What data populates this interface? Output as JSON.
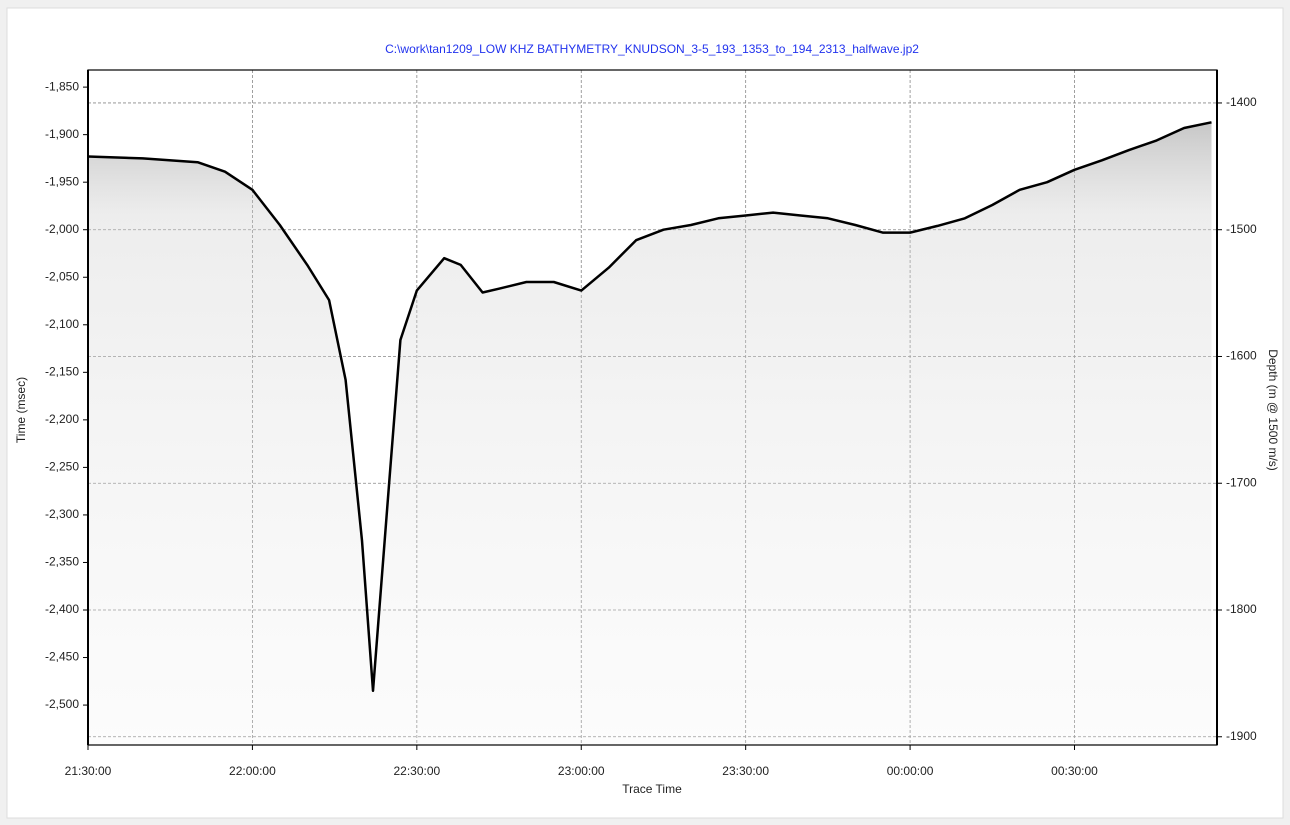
{
  "chart_data": {
    "type": "line",
    "title": "C:\\work\\tan1209_LOW KHZ BATHYMETRY_KNUDSON_3-5_193_1353_to_194_2313_halfwave.jp2",
    "xlabel": "Trace Time",
    "ylabel": "Time (msec)",
    "y2label": "Depth (m @ 1500 m/s)",
    "x": [
      "21:30",
      "21:40",
      "21:50",
      "21:55",
      "22:00",
      "22:05",
      "22:10",
      "22:14",
      "22:17",
      "22:20",
      "22:22",
      "22:25",
      "22:27",
      "22:30",
      "22:35",
      "22:38",
      "22:42",
      "22:45",
      "22:50",
      "22:55",
      "23:00",
      "23:05",
      "23:10",
      "23:15",
      "23:20",
      "23:25",
      "23:30",
      "23:35",
      "23:40",
      "23:45",
      "23:50",
      "23:55",
      "00:00",
      "00:05",
      "00:10",
      "00:15",
      "00:20",
      "00:25",
      "00:30",
      "00:35",
      "00:40",
      "00:45",
      "00:50",
      "00:55"
    ],
    "series": [
      {
        "color": "#000000",
        "values": [
          -1923,
          -1925,
          -1929,
          -1939,
          -1958,
          -1995,
          -2037,
          -2074,
          -2158,
          -2327,
          -2485,
          -2263,
          -2116,
          -2064,
          -2030,
          -2037,
          -2066,
          -2062,
          -2055,
          -2055,
          -2064,
          -2040,
          -2011,
          -2000,
          -1995,
          -1988,
          -1985,
          -1982,
          -1985,
          -1988,
          -1995,
          -2003,
          -2003,
          -1996,
          -1988,
          -1974,
          -1958,
          -1950,
          -1937,
          -1927,
          -1916,
          -1906,
          -1893,
          -1887
        ]
      }
    ],
    "xlim": [
      "21:30",
      "00:56"
    ],
    "xticks": [
      "21:30:00",
      "22:00:00",
      "22:30:00",
      "23:00:00",
      "23:30:00",
      "00:00:00",
      "00:30:00"
    ],
    "ylim": [
      -2542,
      -1832
    ],
    "yticks": [
      {
        "value": -1850,
        "label": "-1,850"
      },
      {
        "value": -1900,
        "label": "-1,900"
      },
      {
        "value": -1950,
        "label": "-1,950"
      },
      {
        "value": -2000,
        "label": "-2,000"
      },
      {
        "value": -2050,
        "label": "-2,050"
      },
      {
        "value": -2100,
        "label": "-2,100"
      },
      {
        "value": -2150,
        "label": "-2,150"
      },
      {
        "value": -2200,
        "label": "-2,200"
      },
      {
        "value": -2250,
        "label": "-2,250"
      },
      {
        "value": -2300,
        "label": "-2,300"
      },
      {
        "value": -2350,
        "label": "-2,350"
      },
      {
        "value": -2400,
        "label": "-2,400"
      },
      {
        "value": -2450,
        "label": "-2,450"
      },
      {
        "value": -2500,
        "label": "-2,500"
      }
    ],
    "y2lim": [
      -1906.5,
      -1374
    ],
    "y2ticks": [
      -1400,
      -1500,
      -1600,
      -1700,
      -1800,
      -1900
    ],
    "grid": true
  }
}
